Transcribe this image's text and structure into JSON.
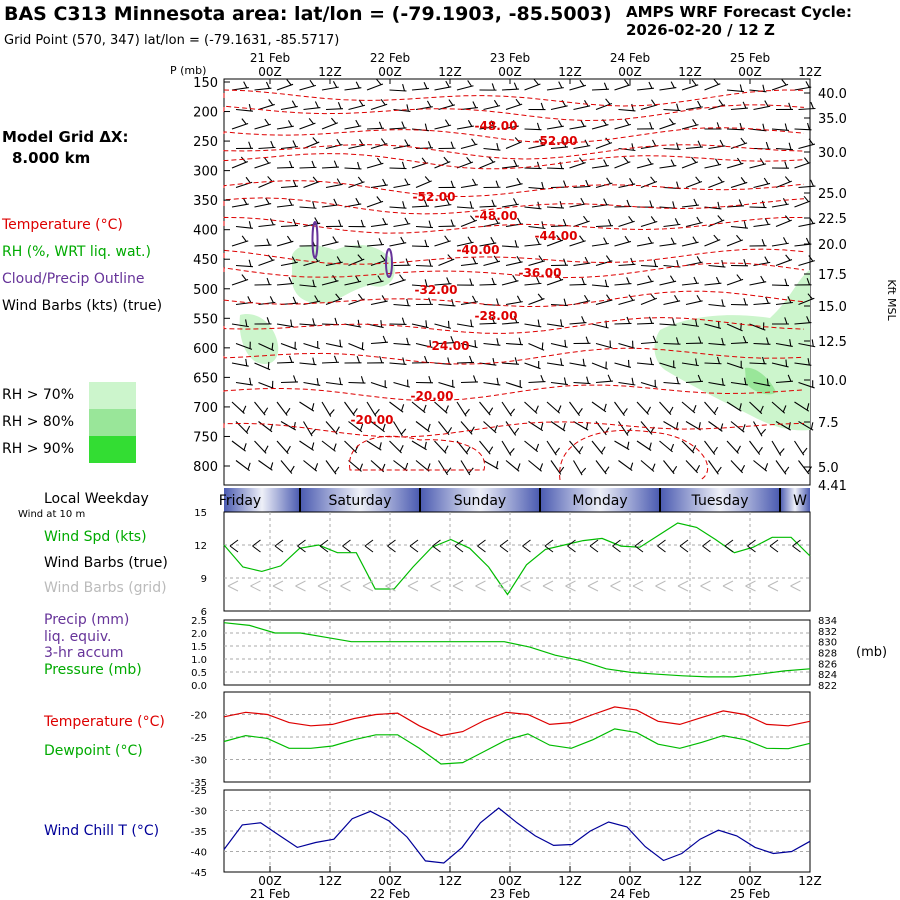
{
  "header": {
    "title": "BAS C313 Minnesota area:  lat/lon = (-79.1903, -85.5003)",
    "grid_point": "Grid Point (570, 347) lat/lon = (-79.1631, -85.5717)",
    "cycle_line1": "AMPS WRF Forecast Cycle:",
    "cycle_line2": "2026-02-20 / 12  Z"
  },
  "left_panel": {
    "model_grid_line1": "Model Grid ΔX:",
    "model_grid_line2": "8.000 km",
    "temperature_label": "Temperature (°C)",
    "rh_label": "RH (%, WRT liq. wat.)",
    "cloud_label": "Cloud/Precip Outline",
    "wind_label": "Wind Barbs (kts) (true)",
    "rh_legend": [
      {
        "label": "RH > 70%",
        "color": "#ccf5cc"
      },
      {
        "label": "RH > 80%",
        "color": "#99e699"
      },
      {
        "label": "RH > 90%",
        "color": "#33dd33"
      }
    ],
    "local_weekday": "Local Weekday",
    "wind_10m": "Wind at 10 m"
  },
  "colors": {
    "temperature": "#dd0000",
    "wind_speed": "#00bb00",
    "dewpoint": "#00bb00",
    "pressure": "#00bb00",
    "precip": "#663399",
    "wind_chill": "#000099",
    "weekday_band": "#3a4aa8"
  },
  "time_axis": {
    "top_row": [
      "21 Feb",
      "22 Feb",
      "23 Feb",
      "24 Feb",
      "25 Feb"
    ],
    "ticks": [
      "00Z",
      "12Z",
      "00Z",
      "12Z",
      "00Z",
      "12Z",
      "00Z",
      "12Z",
      "00Z",
      "12Z"
    ],
    "bottom_dates": [
      "21 Feb",
      "22 Feb",
      "23 Feb",
      "24 Feb",
      "25 Feb"
    ]
  },
  "weekdays": [
    "Friday",
    "Saturday",
    "Sunday",
    "Monday",
    "Tuesday",
    "W"
  ],
  "chart_data": [
    {
      "type": "heatmap",
      "name": "cross-section",
      "ylabel": "P (mb)",
      "y_ticks": [
        "150",
        "200",
        "250",
        "300",
        "350",
        "400",
        "450",
        "500",
        "550",
        "600",
        "650",
        "700",
        "750",
        "800"
      ],
      "right_axis_label": "Kft MSL",
      "right_ticks": [
        "40.0",
        "35.0",
        "30.0",
        "25.0",
        "22.5",
        "20.0",
        "17.5",
        "15.0",
        "12.5",
        "10.0",
        "7.5",
        "5.0",
        "4.41"
      ],
      "temperature_contours": [
        "-48.00",
        "-52.00",
        "-52.00",
        "-48.00",
        "-44.00",
        "-40.00",
        "-36.00",
        "-32.00",
        "-28.00",
        "-24.00",
        "-20.00",
        "-20.00"
      ]
    },
    {
      "type": "line",
      "name": "wind-speed",
      "ylabel": "Wind Spd (kts)",
      "series_labels": [
        "Wind Spd (kts)",
        "Wind Barbs (true)",
        "Wind Barbs (grid)"
      ],
      "y_ticks": [
        "15",
        "12",
        "9",
        "6"
      ],
      "ylim": [
        6,
        15
      ],
      "values": [
        12,
        10,
        9.6,
        10.1,
        11.7,
        12.0,
        11.3,
        11.3,
        8.0,
        8.0,
        10.0,
        11.8,
        12.5,
        11.7,
        10.0,
        7.5,
        10.2,
        11.6,
        12.0,
        12.4,
        12.6,
        11.9,
        11.8,
        12.9,
        14.0,
        13.6,
        12.5,
        11.3,
        11.8,
        12.7,
        12.7,
        11.0
      ]
    },
    {
      "type": "line",
      "name": "precip-pressure",
      "series_labels": [
        "Precip (mm)",
        "liq. equiv.",
        "3-hr accum",
        "Pressure (mb)"
      ],
      "y_ticks": [
        "2.5",
        "2.0",
        "1.5",
        "1.0",
        "0.5",
        "0.0"
      ],
      "ylim": [
        0,
        2.5
      ],
      "right_ticks": [
        "834",
        "832",
        "830",
        "828",
        "826",
        "824",
        "822"
      ],
      "right_unit": "(mb)",
      "pressure_ylim": [
        822,
        834
      ],
      "pressure": [
        833.5,
        833.0,
        831.6,
        831.6,
        830.8,
        830.0,
        830.0,
        830.0,
        830.0,
        830.0,
        830.0,
        830.0,
        829.0,
        827.5,
        826.5,
        825.0,
        824.3,
        824.0,
        823.7,
        823.5,
        823.5,
        824.0,
        824.6,
        825.0
      ]
    },
    {
      "type": "line",
      "name": "temperature-dewpoint",
      "series_labels": [
        "Temperature (°C)",
        "Dewpoint (°C)"
      ],
      "y_ticks": [
        "-20",
        "-25",
        "-30",
        "-35"
      ],
      "ylim": [
        -35,
        -15
      ],
      "temperature": [
        -20.5,
        -19.5,
        -20.0,
        -21.8,
        -22.5,
        -22.2,
        -20.9,
        -20.0,
        -19.7,
        -22.5,
        -24.7,
        -23.8,
        -21.3,
        -19.5,
        -20.0,
        -22.2,
        -21.8,
        -20.0,
        -18.3,
        -19.0,
        -21.5,
        -22.2,
        -20.7,
        -19.2,
        -20.0,
        -22.2,
        -22.5,
        -21.5
      ],
      "dewpoint": [
        -26.0,
        -24.7,
        -25.3,
        -27.5,
        -27.5,
        -27.0,
        -25.6,
        -24.5,
        -24.5,
        -27.5,
        -31.0,
        -30.7,
        -28.2,
        -25.7,
        -24.3,
        -26.8,
        -27.5,
        -25.6,
        -23.2,
        -24.0,
        -26.6,
        -27.5,
        -26.2,
        -24.7,
        -25.6,
        -27.5,
        -27.6,
        -26.4
      ]
    },
    {
      "type": "line",
      "name": "wind-chill",
      "series_labels": [
        "Wind Chill T (°C)"
      ],
      "y_ticks": [
        "-25",
        "-30",
        "-35",
        "-40",
        "-45"
      ],
      "ylim": [
        -45,
        -25
      ],
      "values": [
        -39.5,
        -33.5,
        -33.0,
        -36.0,
        -39.0,
        -37.8,
        -37.0,
        -32.0,
        -30.2,
        -32.5,
        -36.5,
        -42.3,
        -42.8,
        -39.0,
        -33.0,
        -29.4,
        -33.0,
        -36.2,
        -38.5,
        -38.3,
        -35.0,
        -32.8,
        -34.0,
        -38.8,
        -42.2,
        -40.5,
        -37.0,
        -34.8,
        -36.2,
        -39.0,
        -40.5,
        -40.0,
        -37.5
      ]
    }
  ]
}
